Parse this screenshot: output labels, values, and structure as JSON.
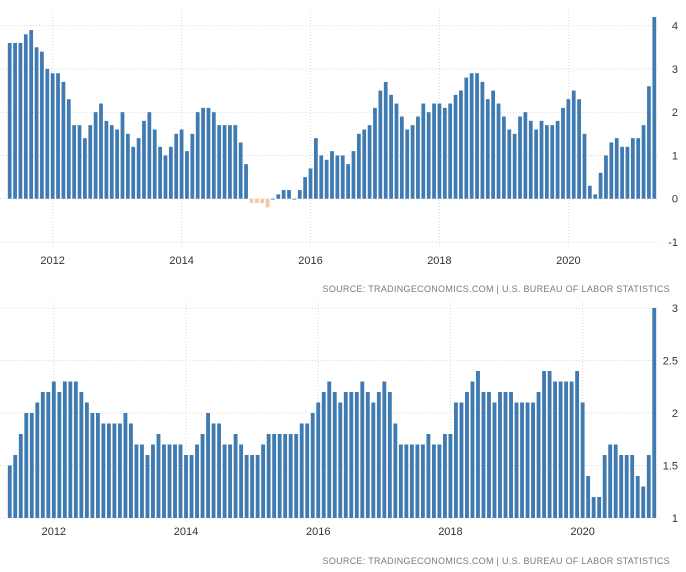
{
  "chart_data": [
    {
      "type": "bar",
      "title": "",
      "xlabel": "",
      "ylabel": "",
      "start": "2011-05",
      "ylim": [
        -1,
        4.2
      ],
      "y_ticks": [
        -1,
        0,
        1,
        2,
        3,
        4
      ],
      "x_ticks": [
        {
          "label": "2012",
          "index": 8
        },
        {
          "label": "2014",
          "index": 32
        },
        {
          "label": "2016",
          "index": 56
        },
        {
          "label": "2018",
          "index": 80
        },
        {
          "label": "2020",
          "index": 104
        }
      ],
      "colors": {
        "positive": "#3f7ab1",
        "negative": "#f5c8a0"
      },
      "values": [
        3.6,
        3.6,
        3.6,
        3.8,
        3.9,
        3.5,
        3.4,
        3.0,
        2.9,
        2.9,
        2.7,
        2.3,
        1.7,
        1.7,
        1.4,
        1.7,
        2.0,
        2.2,
        1.8,
        1.7,
        1.6,
        2.0,
        1.5,
        1.2,
        1.4,
        1.8,
        2.0,
        1.6,
        1.2,
        1.0,
        1.2,
        1.5,
        1.6,
        1.1,
        1.5,
        2.0,
        2.1,
        2.1,
        2.0,
        1.7,
        1.7,
        1.7,
        1.7,
        1.3,
        0.8,
        -0.1,
        -0.1,
        -0.1,
        -0.2,
        0.0,
        0.1,
        0.2,
        0.2,
        0.0,
        0.2,
        0.5,
        0.7,
        1.4,
        1.0,
        0.9,
        1.1,
        1.0,
        1.0,
        0.8,
        1.1,
        1.5,
        1.6,
        1.7,
        2.1,
        2.5,
        2.7,
        2.4,
        2.2,
        1.9,
        1.6,
        1.7,
        1.9,
        2.2,
        2.0,
        2.2,
        2.2,
        2.1,
        2.2,
        2.4,
        2.5,
        2.8,
        2.9,
        2.9,
        2.7,
        2.3,
        2.5,
        2.2,
        1.9,
        1.6,
        1.5,
        1.9,
        2.0,
        1.8,
        1.6,
        1.8,
        1.7,
        1.7,
        1.8,
        2.1,
        2.3,
        2.5,
        2.3,
        1.5,
        0.3,
        0.1,
        0.6,
        1.0,
        1.3,
        1.4,
        1.2,
        1.2,
        1.4,
        1.4,
        1.7,
        2.6,
        4.2
      ],
      "source_text": "SOURCE: TRADINGECONOMICS.COM  |  U.S. BUREAU OF LABOR STATISTICS"
    },
    {
      "type": "bar",
      "title": "",
      "xlabel": "",
      "ylabel": "",
      "start": "2011-05",
      "ylim": [
        1,
        3
      ],
      "y_ticks": [
        1,
        1.5,
        2,
        2.5,
        3
      ],
      "x_ticks": [
        {
          "label": "2012",
          "index": 8
        },
        {
          "label": "2014",
          "index": 32
        },
        {
          "label": "2016",
          "index": 56
        },
        {
          "label": "2018",
          "index": 80
        },
        {
          "label": "2020",
          "index": 104
        }
      ],
      "colors": {
        "positive": "#3f7ab1",
        "negative": "#f5c8a0"
      },
      "values": [
        1.5,
        1.6,
        1.8,
        2.0,
        2.0,
        2.1,
        2.2,
        2.2,
        2.3,
        2.2,
        2.3,
        2.3,
        2.3,
        2.2,
        2.1,
        2.0,
        2.0,
        1.9,
        1.9,
        1.9,
        1.9,
        2.0,
        1.9,
        1.7,
        1.7,
        1.6,
        1.7,
        1.8,
        1.7,
        1.7,
        1.7,
        1.7,
        1.6,
        1.6,
        1.7,
        1.8,
        2.0,
        1.9,
        1.9,
        1.7,
        1.7,
        1.8,
        1.7,
        1.6,
        1.6,
        1.6,
        1.7,
        1.8,
        1.8,
        1.8,
        1.8,
        1.8,
        1.8,
        1.9,
        1.9,
        2.0,
        2.1,
        2.2,
        2.3,
        2.2,
        2.1,
        2.2,
        2.2,
        2.2,
        2.3,
        2.2,
        2.1,
        2.2,
        2.3,
        2.2,
        1.9,
        1.7,
        1.7,
        1.7,
        1.7,
        1.7,
        1.8,
        1.7,
        1.7,
        1.8,
        1.8,
        2.1,
        2.1,
        2.2,
        2.3,
        2.4,
        2.2,
        2.2,
        2.1,
        2.2,
        2.2,
        2.2,
        2.1,
        2.1,
        2.1,
        2.1,
        2.2,
        2.4,
        2.4,
        2.3,
        2.3,
        2.3,
        2.3,
        2.4,
        2.1,
        1.4,
        1.2,
        1.2,
        1.6,
        1.7,
        1.7,
        1.6,
        1.6,
        1.6,
        1.4,
        1.3,
        1.6,
        3.0
      ],
      "source_text": "SOURCE: TRADINGECONOMICS.COM  |  U.S. BUREAU OF LABOR STATISTICS"
    }
  ]
}
